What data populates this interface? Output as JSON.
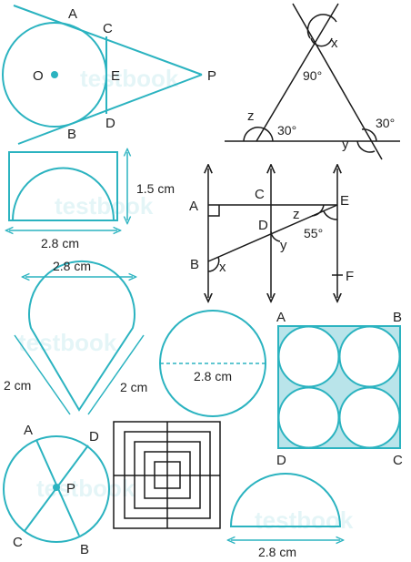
{
  "colors": {
    "accent": "#2bb3c0",
    "fill": "#b9e4ea",
    "ink": "#1a1a1a"
  },
  "watermark": "testbook",
  "fig_tangent": {
    "A": "A",
    "B": "B",
    "C": "C",
    "D": "D",
    "E": "E",
    "O": "O",
    "P": "P"
  },
  "fig_angles": {
    "x": "x",
    "y": "y",
    "z": "z",
    "a90": "90°",
    "a30_left": "30°",
    "a30_right": "30°"
  },
  "fig_rect_semicircle": {
    "height": "1.5 cm",
    "width": "2.8 cm"
  },
  "fig_parallel": {
    "A": "A",
    "B": "B",
    "C": "C",
    "D": "D",
    "E": "E",
    "F": "F",
    "x": "x",
    "y": "y",
    "z": "z",
    "angle": "55°"
  },
  "fig_cone": {
    "width": "2.8 cm",
    "left": "2 cm",
    "right": "2 cm"
  },
  "fig_circle_diameter": {
    "diameter": "2.8 cm"
  },
  "fig_square_circles": {
    "A": "A",
    "B": "B",
    "C": "C",
    "D": "D"
  },
  "fig_circle_chords": {
    "A": "A",
    "B": "B",
    "C": "C",
    "D": "D",
    "P": "P"
  },
  "fig_semicircle": {
    "width": "2.8 cm"
  }
}
